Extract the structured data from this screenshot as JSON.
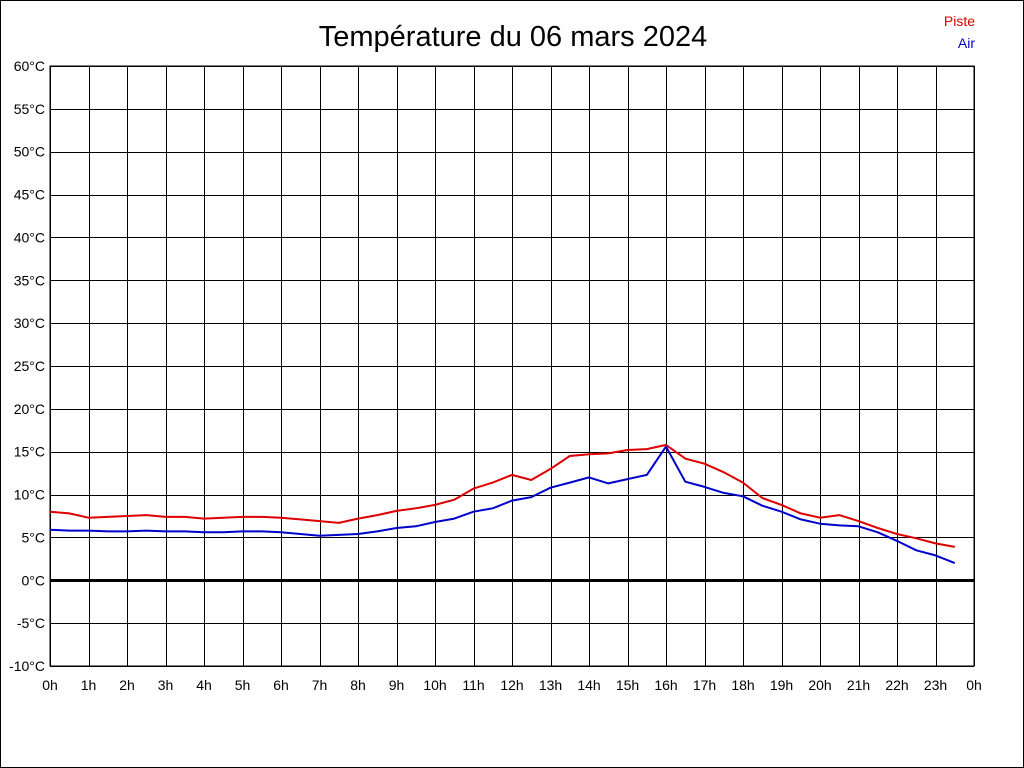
{
  "chart_data": {
    "type": "line",
    "title": "Température du 06 mars 2024",
    "xlabel": "",
    "ylabel": "",
    "x_ticks": [
      "0h",
      "1h",
      "2h",
      "3h",
      "4h",
      "5h",
      "6h",
      "7h",
      "8h",
      "9h",
      "10h",
      "11h",
      "12h",
      "13h",
      "14h",
      "15h",
      "16h",
      "17h",
      "18h",
      "19h",
      "20h",
      "21h",
      "22h",
      "23h",
      "0h"
    ],
    "y_ticks": [
      "60°C",
      "55°C",
      "50°C",
      "45°C",
      "40°C",
      "35°C",
      "30°C",
      "25°C",
      "20°C",
      "15°C",
      "10°C",
      "5°C",
      "0°C",
      "-5°C",
      "-10°C"
    ],
    "xlim": [
      0,
      24
    ],
    "ylim": [
      -10,
      60
    ],
    "grid": true,
    "legend_position": "top-right",
    "x": [
      0,
      0.5,
      1,
      1.5,
      2,
      2.5,
      3,
      3.5,
      4,
      4.5,
      5,
      5.5,
      6,
      6.5,
      7,
      7.5,
      8,
      8.5,
      9,
      9.5,
      10,
      10.5,
      11,
      11.5,
      12,
      12.5,
      13,
      13.5,
      14,
      14.5,
      15,
      15.5,
      16,
      16.5,
      17,
      17.5,
      18,
      18.5,
      19,
      19.5,
      20,
      20.5,
      21,
      21.5,
      22,
      22.5,
      23,
      23.5
    ],
    "series": [
      {
        "name": "Piste",
        "color": "#dd0000",
        "values": [
          8.0,
          7.8,
          7.3,
          7.4,
          7.5,
          7.6,
          7.4,
          7.4,
          7.2,
          7.3,
          7.4,
          7.4,
          7.3,
          7.1,
          6.9,
          6.7,
          7.2,
          7.6,
          8.1,
          8.4,
          8.8,
          9.4,
          10.7,
          11.4,
          12.3,
          11.7,
          13.0,
          14.5,
          14.7,
          14.8,
          15.2,
          15.3,
          15.8,
          14.2,
          13.6,
          12.6,
          11.4,
          9.6,
          8.8,
          7.8,
          7.3,
          7.6,
          6.9,
          6.1,
          5.4,
          4.9,
          4.3,
          3.9
        ]
      },
      {
        "name": "Air",
        "color": "#0000cc",
        "values": [
          5.9,
          5.8,
          5.8,
          5.7,
          5.7,
          5.8,
          5.7,
          5.7,
          5.6,
          5.6,
          5.7,
          5.7,
          5.6,
          5.4,
          5.2,
          5.3,
          5.4,
          5.7,
          6.1,
          6.3,
          6.8,
          7.2,
          8.0,
          8.4,
          9.3,
          9.7,
          10.8,
          11.4,
          12.0,
          11.3,
          11.8,
          12.3,
          15.6,
          11.5,
          10.9,
          10.2,
          9.8,
          8.7,
          8.0,
          7.1,
          6.6,
          6.4,
          6.3,
          5.6,
          4.6,
          3.5,
          2.9,
          2.0
        ]
      }
    ]
  }
}
